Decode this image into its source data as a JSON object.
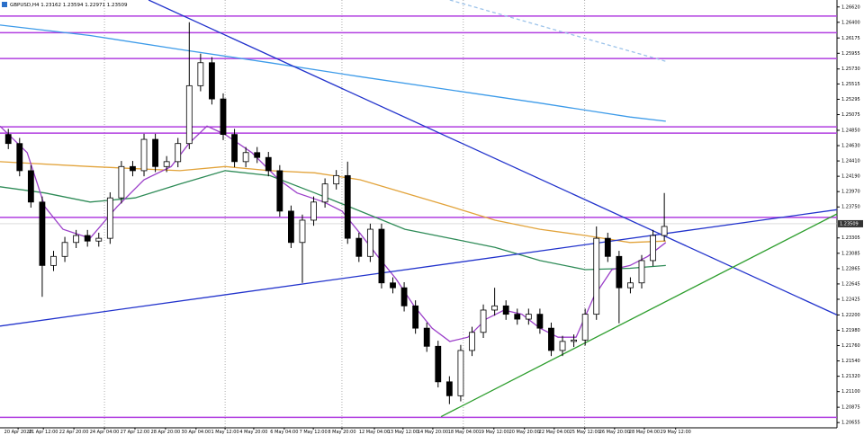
{
  "chart_data": {
    "type": "candlestick",
    "title": "GBPUSD,H4  1.23162 1.23594 1.22971 1.23509",
    "x": [
      1,
      4,
      7,
      10,
      13,
      16,
      19,
      22,
      25,
      28,
      31,
      34,
      37,
      40,
      43,
      46,
      49,
      52,
      55,
      58,
      61,
      64,
      67,
      70,
      73,
      76,
      79,
      82,
      85,
      88,
      91,
      94,
      97,
      100,
      103,
      106,
      109,
      112,
      115,
      118,
      121,
      124,
      127,
      130,
      133,
      136,
      139,
      142,
      145,
      148,
      151,
      154,
      157,
      160,
      163,
      166,
      169,
      172,
      175
    ],
    "open": [
      1.2479,
      1.2466,
      1.2427,
      1.2382,
      1.2291,
      1.2304,
      1.2324,
      1.2334,
      1.2326,
      1.233,
      1.2388,
      1.2433,
      1.2427,
      1.2472,
      1.2433,
      1.244,
      1.2466,
      1.2549,
      1.2582,
      1.253,
      1.2479,
      1.244,
      1.2453,
      1.2446,
      1.2427,
      1.2369,
      1.2324,
      1.2356,
      1.2382,
      1.2408,
      1.242,
      1.233,
      1.2304,
      1.2343,
      1.2266,
      1.2259,
      1.2233,
      1.2201,
      1.2175,
      1.2124,
      1.2104,
      1.2169,
      1.2195,
      1.2227,
      1.2233,
      1.2221,
      1.2214,
      1.2221,
      1.2201,
      1.2169,
      1.2182,
      1.2184,
      1.2221,
      1.233,
      1.2304,
      1.2259,
      1.2266,
      1.2298,
      1.2334
    ],
    "high": [
      1.2487,
      1.2474,
      1.2435,
      1.239,
      1.2312,
      1.2332,
      1.2342,
      1.2342,
      1.2338,
      1.2396,
      1.2441,
      1.2441,
      1.248,
      1.248,
      1.2448,
      1.2474,
      1.264,
      1.2595,
      1.259,
      1.2538,
      1.2487,
      1.2461,
      1.2461,
      1.2454,
      1.2435,
      1.2377,
      1.2364,
      1.239,
      1.2416,
      1.2428,
      1.244,
      1.2338,
      1.2351,
      1.2351,
      1.2274,
      1.2267,
      1.2241,
      1.2209,
      1.2183,
      1.2132,
      1.2177,
      1.2203,
      1.2235,
      1.2259,
      1.2241,
      1.2229,
      1.2229,
      1.2229,
      1.2209,
      1.219,
      1.2192,
      1.2229,
      1.2347,
      1.2338,
      1.2312,
      1.2274,
      1.2306,
      1.2342,
      1.2395
    ],
    "low": [
      1.2458,
      1.2419,
      1.2374,
      1.2246,
      1.2283,
      1.2296,
      1.2316,
      1.2318,
      1.2318,
      1.2322,
      1.238,
      1.2419,
      1.2419,
      1.2425,
      1.2425,
      1.2432,
      1.2458,
      1.2541,
      1.2522,
      1.2471,
      1.2432,
      1.2432,
      1.2438,
      1.2419,
      1.2361,
      1.2316,
      1.2266,
      1.2348,
      1.2374,
      1.24,
      1.2322,
      1.2296,
      1.2296,
      1.2258,
      1.2251,
      1.2225,
      1.2193,
      1.2167,
      1.2116,
      1.2092,
      1.2096,
      1.2161,
      1.2187,
      1.2219,
      1.2213,
      1.2206,
      1.2206,
      1.2193,
      1.2161,
      1.2161,
      1.2174,
      1.2176,
      1.2213,
      1.2296,
      1.2208,
      1.2251,
      1.2258,
      1.229,
      1.2326
    ],
    "close": [
      1.2466,
      1.2427,
      1.2382,
      1.2291,
      1.2304,
      1.2324,
      1.2334,
      1.2326,
      1.233,
      1.2388,
      1.2433,
      1.2427,
      1.2472,
      1.2433,
      1.244,
      1.2466,
      1.2549,
      1.2582,
      1.253,
      1.2479,
      1.244,
      1.2453,
      1.2446,
      1.2427,
      1.2369,
      1.2324,
      1.2356,
      1.2382,
      1.2408,
      1.242,
      1.233,
      1.2304,
      1.2343,
      1.2266,
      1.2259,
      1.2233,
      1.2201,
      1.2175,
      1.2124,
      1.2104,
      1.2169,
      1.2195,
      1.2227,
      1.2233,
      1.2221,
      1.2214,
      1.2221,
      1.2201,
      1.2169,
      1.2182,
      1.2184,
      1.2221,
      1.233,
      1.2304,
      1.2259,
      1.2266,
      1.2298,
      1.2334,
      1.2347
    ],
    "up_color": "#ffffff",
    "down_color": "#000000",
    "xlim": [
      -1.2,
      220.8
    ],
    "ylim": [
      1.2058,
      1.2672
    ],
    "xticks": [
      {
        "value": 3.6,
        "label": "20 Apr 2020"
      },
      {
        "value": 10.3,
        "label": "21 Apr 12:00"
      },
      {
        "value": 18.4,
        "label": "22 Apr 20:00"
      },
      {
        "value": 26.5,
        "label": "24 Apr 04:00"
      },
      {
        "value": 34.6,
        "label": "27 Apr 12:00"
      },
      {
        "value": 42.7,
        "label": "28 Apr 20:00"
      },
      {
        "value": 50.8,
        "label": "30 Apr 04:00"
      },
      {
        "value": 58.5,
        "label": "1 May 12:00"
      },
      {
        "value": 66.1,
        "label": "4 May 20:00"
      },
      {
        "value": 74.2,
        "label": "6 May 04:00"
      },
      {
        "value": 81.9,
        "label": "7 May 12:00"
      },
      {
        "value": 89.5,
        "label": "8 May 20:00"
      },
      {
        "value": 98.1,
        "label": "12 May 04:00"
      },
      {
        "value": 105.7,
        "label": "13 May 12:00"
      },
      {
        "value": 113.6,
        "label": "14 May 20:00"
      },
      {
        "value": 121.7,
        "label": "18 May 04:00"
      },
      {
        "value": 129.8,
        "label": "19 May 12:00"
      },
      {
        "value": 137.9,
        "label": "20 May 20:00"
      },
      {
        "value": 145.8,
        "label": "22 May 04:00"
      },
      {
        "value": 153.9,
        "label": "25 May 12:00"
      },
      {
        "value": 161.8,
        "label": "26 May 20:00"
      },
      {
        "value": 169.7,
        "label": "28 May 04:00"
      },
      {
        "value": 178.0,
        "label": "29 May 12:00"
      }
    ],
    "yticks": [
      {
        "value": 1.2662,
        "label": "1.26620"
      },
      {
        "value": 1.264,
        "label": "1.26400"
      },
      1.26175,
      1.25955,
      {
        "value": 1.2573,
        "label": "1.25730"
      },
      1.25515,
      1.25295,
      1.25075,
      {
        "value": 1.2485,
        "label": "1.24850"
      },
      {
        "value": 1.2463,
        "label": "1.24630"
      },
      {
        "value": 1.2441,
        "label": "1.24410"
      },
      {
        "value": 1.2419,
        "label": "1.24190"
      },
      {
        "value": 1.2397,
        "label": "1.23970"
      },
      {
        "value": 1.2375,
        "label": "1.23750"
      },
      1.23305,
      1.23085,
      1.22865,
      1.22645,
      1.22425,
      {
        "value": 1.222,
        "label": "1.22200"
      },
      {
        "value": 1.2198,
        "label": "1.21980"
      },
      {
        "value": 1.2176,
        "label": "1.21760"
      },
      {
        "value": 1.2154,
        "label": "1.21540"
      },
      {
        "value": 1.2132,
        "label": "1.21320"
      },
      {
        "value": 1.211,
        "label": "1.21100"
      },
      1.20875,
      1.20655
    ],
    "last_price": 1.23509,
    "levels": {
      "color": "#b13ee0",
      "values": [
        1.2649,
        1.2625,
        1.2588,
        1.249,
        1.2481,
        1.236,
        1.2073
      ]
    },
    "overlays": [
      {
        "color": "#3d9be9",
        "dash": false,
        "x": [
          -1.2,
          22.7,
          46.5,
          70.4,
          94.3,
          118.1,
          142.0,
          165.9,
          175.4
        ],
        "values": [
          1.2636,
          1.2621,
          1.2601,
          1.2582,
          1.2562,
          1.2543,
          1.2524,
          1.2504,
          1.2498
        ]
      },
      {
        "color": "#e2a33a",
        "dash": false,
        "x": [
          -1.2,
          22.7,
          46.5,
          58.5,
          70.4,
          82.3,
          94.3,
          106.2,
          118.1,
          130.1,
          142.0,
          154.0,
          165.9,
          175.4
        ],
        "values": [
          1.244,
          1.2433,
          1.2427,
          1.2433,
          1.2427,
          1.2424,
          1.2414,
          1.2395,
          1.2376,
          1.2356,
          1.2343,
          1.2334,
          1.2324,
          1.2326
        ]
      },
      {
        "color": "#2e8b57",
        "dash": false,
        "x": [
          -1.2,
          10.7,
          22.7,
          34.6,
          46.5,
          58.5,
          70.4,
          82.3,
          94.3,
          106.2,
          118.1,
          130.1,
          142.0,
          154.0,
          165.9,
          175.4
        ],
        "values": [
          1.2404,
          1.2395,
          1.2382,
          1.2388,
          1.2408,
          1.2427,
          1.242,
          1.2395,
          1.2369,
          1.2343,
          1.233,
          1.2317,
          1.2298,
          1.2285,
          1.2287,
          1.2291
        ]
      },
      {
        "color": "#9b3fc9",
        "dash": false,
        "x": [
          -1.2,
          6.0,
          10.7,
          15.5,
          22.7,
          29.8,
          37.0,
          44.2,
          48.9,
          53.7,
          58.5,
          65.6,
          72.8,
          77.6,
          84.7,
          89.5,
          94.3,
          99.0,
          103.8,
          108.6,
          113.4,
          118.1,
          122.9,
          127.7,
          132.5,
          137.2,
          142.0,
          146.8,
          151.6,
          156.3,
          161.1,
          165.9,
          170.6,
          175.4
        ],
        "values": [
          1.2491,
          1.2453,
          1.2375,
          1.2343,
          1.233,
          1.2375,
          1.2414,
          1.2433,
          1.2466,
          1.2491,
          1.2479,
          1.2453,
          1.2414,
          1.2395,
          1.2382,
          1.2369,
          1.2337,
          1.2304,
          1.2272,
          1.2233,
          1.2201,
          1.2182,
          1.2188,
          1.2214,
          1.2227,
          1.2221,
          1.2201,
          1.2188,
          1.2188,
          1.2246,
          1.2285,
          1.2291,
          1.2304,
          1.2324
        ]
      },
      {
        "color": "#2233cc",
        "dash": false,
        "x": [
          38.2,
          220.8
        ],
        "values": [
          1.2672,
          1.222
        ]
      },
      {
        "color": "#2233cc",
        "dash": false,
        "x": [
          -1.2,
          220.8
        ],
        "values": [
          1.2204,
          1.2371
        ]
      },
      {
        "color": "#2e9e2e",
        "dash": false,
        "x": [
          115.8,
          220.8
        ],
        "values": [
          1.2074,
          1.2365
        ]
      },
      {
        "color": "#9cc3ea",
        "dash": true,
        "x": [
          118.1,
          175.4
        ],
        "values": [
          1.2672,
          1.2584
        ]
      }
    ]
  }
}
